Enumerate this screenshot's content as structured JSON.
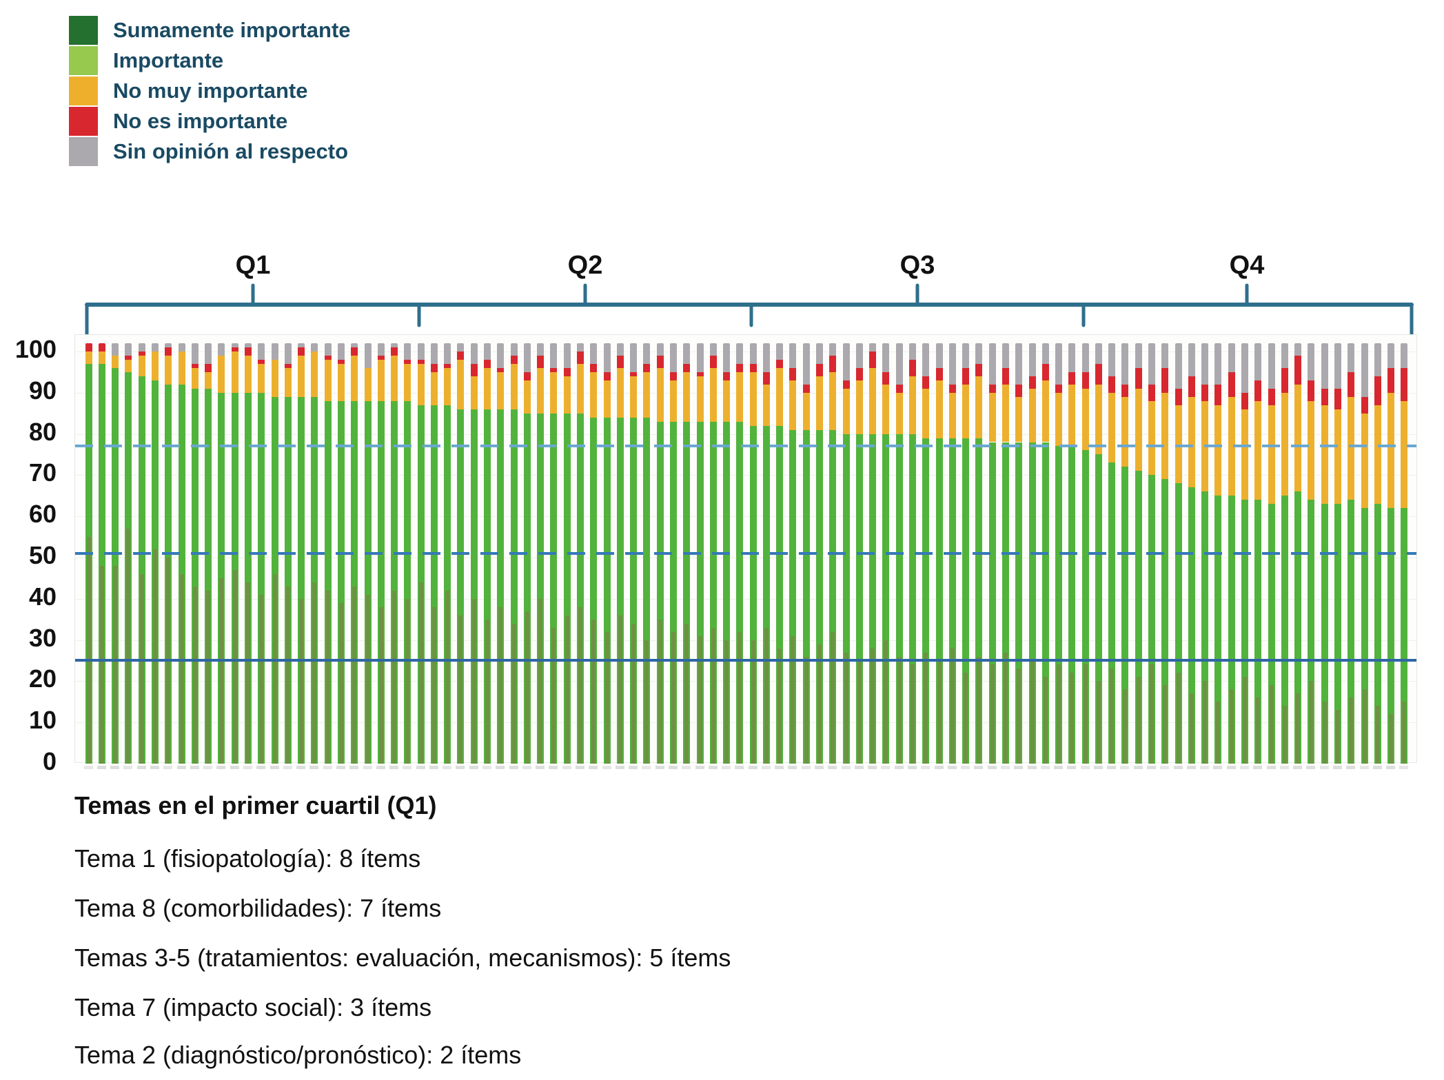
{
  "legend": {
    "items": [
      {
        "label": "Sumamente importante",
        "color": "#23702f"
      },
      {
        "label": "Importante",
        "color": "#96c94e"
      },
      {
        "label": "No muy importante",
        "color": "#eeb02c"
      },
      {
        "label": "No es importante",
        "color": "#d8272f"
      },
      {
        "label": "Sin opinión al respecto",
        "color": "#aba9ae"
      }
    ]
  },
  "quartiles": {
    "labels": [
      "Q1",
      "Q2",
      "Q3",
      "Q4"
    ]
  },
  "y_axis": {
    "ticks": [
      100,
      90,
      80,
      70,
      60,
      50,
      40,
      30,
      20,
      10,
      0
    ]
  },
  "colors": {
    "bar_importante": "#52b33c",
    "bar_sumamente_stripe": "#6e9243",
    "bar_no_muy": "#edb02e",
    "bar_no_es": "#d8272f",
    "bar_sin_opinion": "#aba9ae",
    "bracket": "#2e6f8c",
    "ref_77": "#6aa7d2",
    "ref_51": "#3579b8",
    "ref_25": "#2f66a5",
    "legend_text": "#1a4a63"
  },
  "chart_data": {
    "type": "bar",
    "stacked": true,
    "n_bars": 100,
    "bars_per_quartile": 25,
    "ylim": [
      0,
      104
    ],
    "grid": "horizontal-faint",
    "legend_position": "top-left",
    "reference_lines": [
      {
        "value": 77,
        "style": "dashed",
        "color": "#6aa7d2"
      },
      {
        "value": 51,
        "style": "dashed",
        "color": "#3579b8"
      },
      {
        "value": 25,
        "style": "solid",
        "color": "#2f66a5"
      }
    ],
    "series": [
      {
        "name": "Sumamente importante",
        "values": [
          55,
          48,
          48,
          57,
          46,
          52,
          50,
          46,
          43,
          42,
          45,
          47,
          44,
          41,
          46,
          43,
          40,
          44,
          42,
          39,
          43,
          41,
          38,
          42,
          40,
          44,
          38,
          42,
          36,
          40,
          35,
          38,
          34,
          37,
          40,
          33,
          36,
          38,
          35,
          32,
          36,
          34,
          30,
          35,
          32,
          34,
          31,
          33,
          30,
          32,
          30,
          33,
          28,
          31,
          26,
          29,
          32,
          27,
          25,
          28,
          30,
          26,
          24,
          27,
          25,
          28,
          22,
          26,
          24,
          27,
          23,
          25,
          21,
          24,
          22,
          24,
          20,
          23,
          18,
          21,
          24,
          19,
          22,
          17,
          20,
          15,
          18,
          21,
          16,
          19,
          14,
          17,
          20,
          15,
          13,
          16,
          18,
          14,
          12,
          15
        ]
      },
      {
        "name": "Importante",
        "values": [
          42,
          49,
          48,
          38,
          48,
          41,
          42,
          46,
          48,
          49,
          45,
          43,
          46,
          49,
          43,
          46,
          49,
          45,
          46,
          49,
          45,
          47,
          50,
          46,
          48,
          43,
          49,
          45,
          50,
          46,
          51,
          48,
          52,
          48,
          45,
          52,
          49,
          47,
          49,
          52,
          48,
          50,
          54,
          48,
          51,
          49,
          52,
          50,
          53,
          51,
          52,
          49,
          54,
          50,
          55,
          52,
          49,
          53,
          55,
          52,
          50,
          54,
          56,
          52,
          54,
          51,
          57,
          53,
          54,
          51,
          55,
          53,
          57,
          53,
          55,
          52,
          55,
          50,
          54,
          50,
          46,
          50,
          46,
          50,
          46,
          50,
          47,
          43,
          48,
          44,
          51,
          49,
          44,
          48,
          50,
          48,
          44,
          49,
          50,
          47
        ]
      },
      {
        "name": "No muy importante",
        "values": [
          3,
          3,
          3,
          3,
          5,
          7,
          7,
          8,
          5,
          4,
          9,
          10,
          9,
          7,
          9,
          7,
          10,
          11,
          10,
          9,
          11,
          8,
          10,
          11,
          9,
          10,
          8,
          9,
          12,
          8,
          10,
          9,
          11,
          8,
          11,
          10,
          9,
          12,
          11,
          9,
          12,
          10,
          11,
          13,
          10,
          12,
          11,
          13,
          10,
          12,
          13,
          10,
          14,
          12,
          9,
          13,
          14,
          11,
          13,
          16,
          12,
          10,
          14,
          12,
          14,
          11,
          13,
          15,
          12,
          14,
          11,
          13,
          15,
          13,
          15,
          15,
          17,
          17,
          17,
          20,
          18,
          21,
          19,
          22,
          22,
          22,
          24,
          22,
          24,
          24,
          25,
          26,
          24,
          24,
          23,
          25,
          23,
          24,
          28,
          26
        ]
      },
      {
        "name": "No es importante",
        "values": [
          2,
          2,
          0,
          1,
          1,
          0,
          2,
          0,
          1,
          2,
          0,
          1,
          2,
          1,
          0,
          1,
          2,
          0,
          1,
          1,
          2,
          0,
          1,
          2,
          1,
          1,
          2,
          1,
          2,
          3,
          2,
          1,
          2,
          2,
          3,
          1,
          2,
          3,
          2,
          2,
          3,
          1,
          2,
          3,
          2,
          2,
          1,
          3,
          2,
          2,
          2,
          3,
          2,
          3,
          2,
          3,
          4,
          2,
          3,
          4,
          3,
          2,
          4,
          3,
          3,
          2,
          4,
          3,
          2,
          4,
          3,
          3,
          4,
          2,
          3,
          4,
          5,
          4,
          3,
          5,
          4,
          6,
          4,
          5,
          4,
          5,
          6,
          4,
          5,
          4,
          6,
          7,
          5,
          4,
          5,
          6,
          4,
          7,
          6,
          8
        ]
      },
      {
        "name": "Sin opinión al respecto",
        "values": [
          0,
          0,
          3,
          3,
          2,
          2,
          1,
          2,
          5,
          5,
          3,
          1,
          1,
          4,
          4,
          5,
          1,
          2,
          3,
          4,
          1,
          6,
          3,
          1,
          4,
          4,
          5,
          5,
          2,
          5,
          4,
          6,
          3,
          7,
          3,
          6,
          6,
          2,
          5,
          7,
          3,
          7,
          5,
          3,
          7,
          5,
          7,
          3,
          7,
          5,
          5,
          7,
          4,
          6,
          10,
          5,
          3,
          9,
          6,
          2,
          7,
          10,
          4,
          8,
          6,
          10,
          6,
          5,
          10,
          6,
          10,
          8,
          5,
          10,
          7,
          7,
          5,
          8,
          10,
          6,
          10,
          6,
          11,
          8,
          10,
          10,
          7,
          12,
          9,
          11,
          6,
          3,
          9,
          11,
          11,
          7,
          13,
          8,
          6,
          6
        ]
      }
    ]
  },
  "footer": {
    "title": "Temas en el primer cuartil (Q1)",
    "lines": [
      "Tema 1 (fisiopatología): 8 ítems",
      "Tema 8 (comorbilidades): 7 ítems",
      "Temas 3-5 (tratamientos: evaluación, mecanismos): 5 ítems",
      "Tema 7 (impacto social): 3 ítems",
      "Tema 2 (diagnóstico/pronóstico): 2 ítems"
    ]
  }
}
